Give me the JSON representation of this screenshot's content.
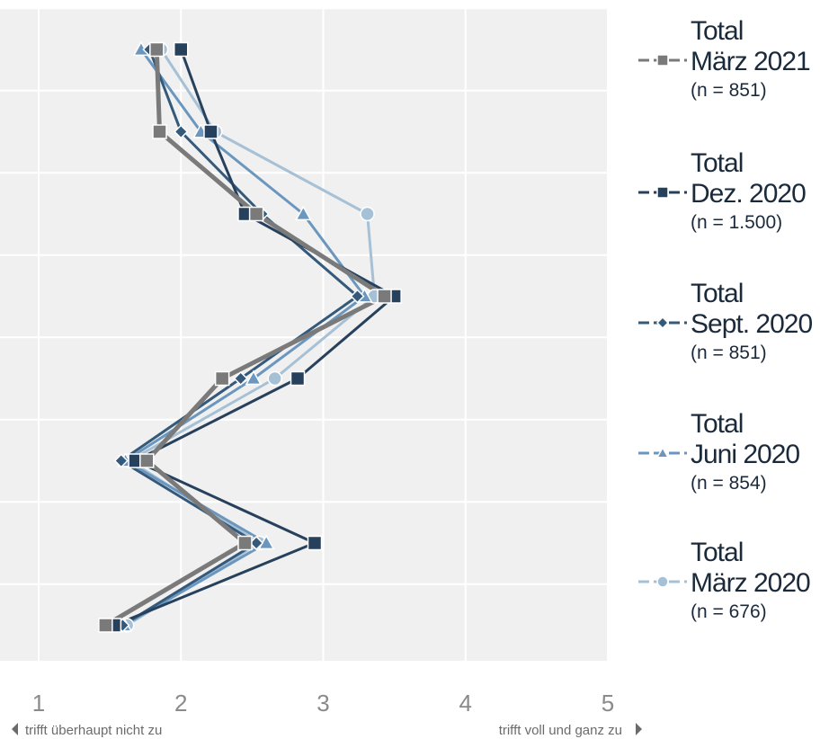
{
  "chart_data": {
    "type": "line",
    "orientation": "vertical-profile",
    "xlim": [
      1,
      5
    ],
    "x_ticks": [
      "1",
      "2",
      "3",
      "4",
      "5"
    ],
    "x_anchor_low": "trifft überhaupt nicht zu",
    "x_anchor_high": "trifft voll und ganz zu",
    "items": [
      1,
      2,
      3,
      4,
      5,
      6,
      7,
      8
    ],
    "grid": true,
    "legend_position": "right",
    "series": [
      {
        "name": "Total März 2021",
        "line1": "Total",
        "line2": "März 2021",
        "n_label": "(n = 851)",
        "color": "#7a7a7a",
        "marker": "square",
        "values": [
          1.83,
          1.85,
          2.53,
          3.43,
          2.29,
          1.76,
          2.45,
          1.47
        ]
      },
      {
        "name": "Total Dez. 2020",
        "line1": "Total",
        "line2": "Dez. 2020",
        "n_label": "(n = 1.500)",
        "color": "#27415c",
        "marker": "square",
        "values": [
          2.0,
          2.21,
          2.45,
          3.5,
          2.82,
          1.68,
          2.94,
          1.53
        ]
      },
      {
        "name": "Total Sept. 2020",
        "line1": "Total",
        "line2": "Sept. 2020",
        "n_label": "(n = 851)",
        "color": "#34597a",
        "marker": "diamond",
        "values": [
          1.78,
          2.0,
          2.57,
          3.24,
          2.42,
          1.58,
          2.53,
          1.59
        ]
      },
      {
        "name": "Total Juni 2020",
        "line1": "Total",
        "line2": "Juni 2020",
        "n_label": "(n = 854)",
        "color": "#6b97bf",
        "marker": "triangle",
        "values": [
          1.72,
          2.14,
          2.86,
          3.29,
          2.51,
          1.61,
          2.6,
          1.6
        ]
      },
      {
        "name": "Total März 2020",
        "line1": "Total",
        "line2": "März 2020",
        "n_label": "(n = 676)",
        "color": "#a6c1d6",
        "marker": "circle",
        "values": [
          1.86,
          2.24,
          3.31,
          3.36,
          2.66,
          1.64,
          2.55,
          1.62
        ]
      }
    ]
  }
}
